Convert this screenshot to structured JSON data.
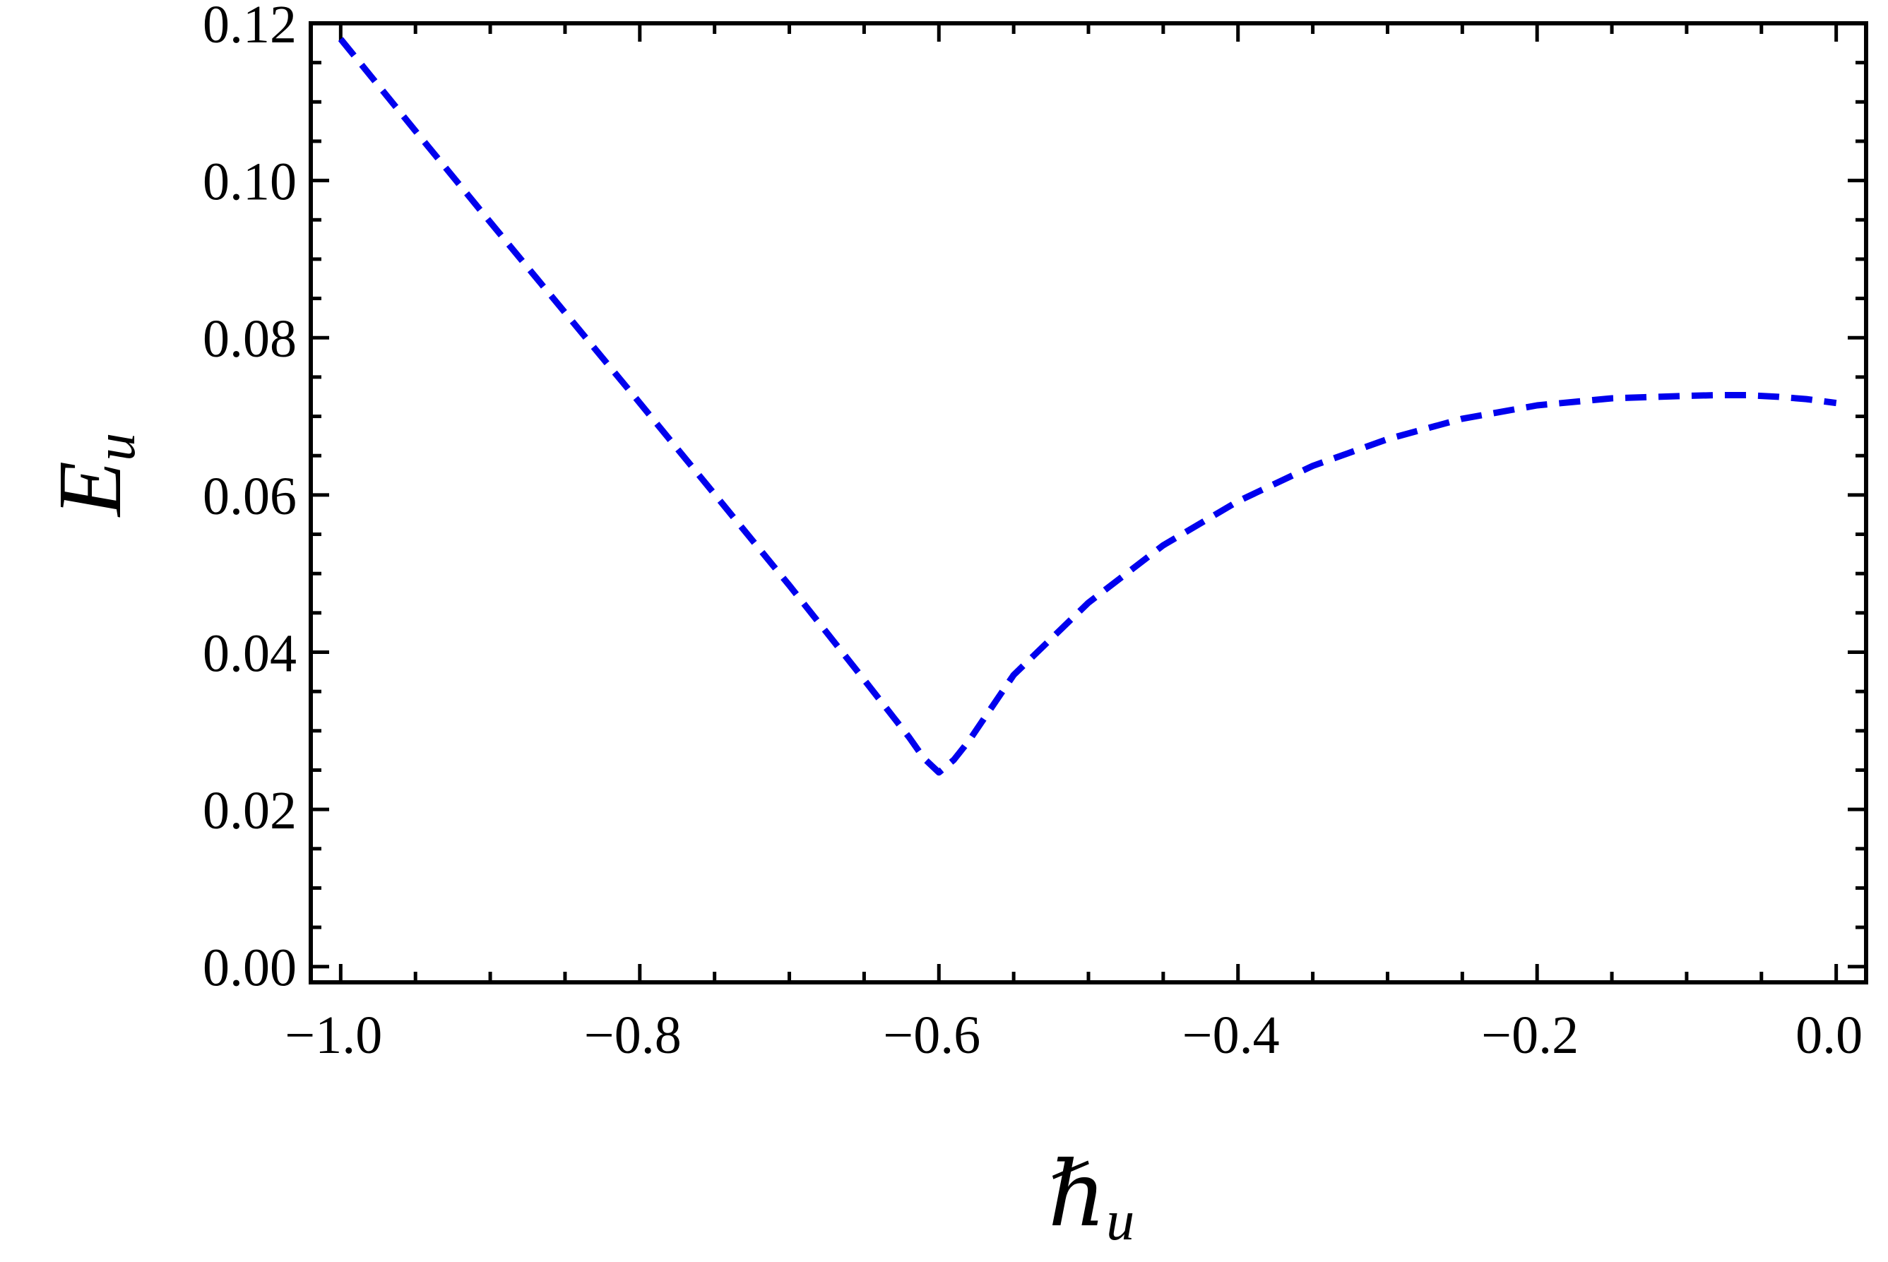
{
  "chart_data": {
    "type": "line",
    "title": "",
    "xlabel": "ℏ",
    "xlabel_subscript": "u",
    "ylabel": "E",
    "ylabel_subscript": "u",
    "xlim": [
      -1.02,
      0.02
    ],
    "ylim": [
      -0.002,
      0.12
    ],
    "x_ticks": [
      -1.0,
      -0.8,
      -0.6,
      -0.4,
      -0.2,
      0.0
    ],
    "x_tick_labels": [
      "−1.0",
      "−0.8",
      "−0.6",
      "−0.4",
      "−0.2",
      "0.0"
    ],
    "y_ticks": [
      0.0,
      0.02,
      0.04,
      0.06,
      0.08,
      0.1,
      0.12
    ],
    "y_tick_labels": [
      "0.00",
      "0.02",
      "0.04",
      "0.06",
      "0.08",
      "0.10",
      "0.12"
    ],
    "grid": false,
    "legend": "none",
    "series": [
      {
        "color": "#0000ee",
        "line_style": "dashed",
        "x": [
          -1.0,
          -0.95,
          -0.9,
          -0.85,
          -0.8,
          -0.75,
          -0.7,
          -0.65,
          -0.62,
          -0.61,
          -0.6,
          -0.59,
          -0.58,
          -0.55,
          -0.5,
          -0.45,
          -0.4,
          -0.35,
          -0.3,
          -0.25,
          -0.2,
          -0.15,
          -0.1,
          -0.08,
          -0.06,
          -0.04,
          -0.02,
          0.0
        ],
        "y": [
          0.118,
          0.1063,
          0.0947,
          0.0832,
          0.0717,
          0.0601,
          0.0485,
          0.0365,
          0.0292,
          0.0265,
          0.0247,
          0.0263,
          0.0287,
          0.0371,
          0.0463,
          0.0536,
          0.0592,
          0.0637,
          0.0671,
          0.0697,
          0.0714,
          0.0723,
          0.0726,
          0.0727,
          0.0727,
          0.0725,
          0.0722,
          0.0717
        ]
      }
    ]
  }
}
